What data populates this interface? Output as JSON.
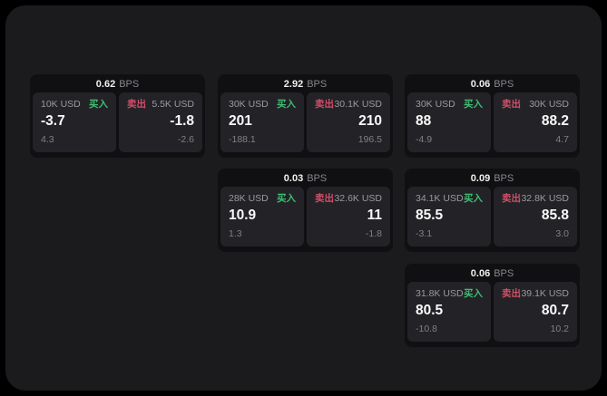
{
  "labels": {
    "bps_suffix": "BPS",
    "buy": "买入",
    "sell": "卖出"
  },
  "colors": {
    "buy": "#3ebd72",
    "sell": "#d04e68",
    "surface_bg": "#1b1b1d",
    "card_bg": "#101012",
    "panel_bg": "#232327"
  },
  "cards": [
    {
      "bps": "0.62",
      "col": 0,
      "row": 0,
      "buy": {
        "amount": "10K USD",
        "value": "-3.7",
        "sub": "4.3"
      },
      "sell": {
        "amount": "5.5K USD",
        "value": "-1.8",
        "sub": "-2.6"
      }
    },
    {
      "bps": "2.92",
      "col": 1,
      "row": 0,
      "buy": {
        "amount": "30K USD",
        "value": "201",
        "sub": "-188.1"
      },
      "sell": {
        "amount": "30.1K USD",
        "value": "210",
        "sub": "196.5"
      }
    },
    {
      "bps": "0.06",
      "col": 2,
      "row": 0,
      "buy": {
        "amount": "30K USD",
        "value": "88",
        "sub": "-4.9"
      },
      "sell": {
        "amount": "30K USD",
        "value": "88.2",
        "sub": "4.7"
      }
    },
    {
      "bps": "0.03",
      "col": 1,
      "row": 1,
      "buy": {
        "amount": "28K USD",
        "value": "10.9",
        "sub": "1.3"
      },
      "sell": {
        "amount": "32.6K USD",
        "value": "11",
        "sub": "-1.8"
      }
    },
    {
      "bps": "0.09",
      "col": 2,
      "row": 1,
      "buy": {
        "amount": "34.1K USD",
        "value": "85.5",
        "sub": "-3.1"
      },
      "sell": {
        "amount": "32.8K USD",
        "value": "85.8",
        "sub": "3.0"
      }
    },
    {
      "bps": "0.06",
      "col": 2,
      "row": 2,
      "buy": {
        "amount": "31.8K USD",
        "value": "80.5",
        "sub": "-10.8"
      },
      "sell": {
        "amount": "39.1K USD",
        "value": "80.7",
        "sub": "10.2"
      }
    }
  ]
}
